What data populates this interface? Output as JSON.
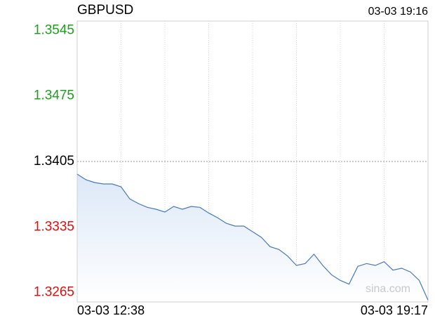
{
  "chart_data": {
    "type": "line",
    "title": "GBPUSD",
    "timestamp": "03-03 19:16",
    "watermark": "sina.com",
    "x_labels": [
      "03-03 12:38",
      "03-03 19:17"
    ],
    "series": [
      {
        "name": "GBPUSD",
        "color": "#4a78b8",
        "values": [
          1.33915,
          1.33855,
          1.33825,
          1.3381,
          1.3381,
          1.3378,
          1.3365,
          1.336,
          1.3356,
          1.3354,
          1.3351,
          1.3357,
          1.3354,
          1.3357,
          1.3356,
          1.335,
          1.3345,
          1.3339,
          1.3336,
          1.3336,
          1.333,
          1.3324,
          1.3314,
          1.3311,
          1.3304,
          1.3294,
          1.3296,
          1.3306,
          1.3294,
          1.3284,
          1.3278,
          1.3274,
          1.3293,
          1.3296,
          1.3294,
          1.3298,
          1.3289,
          1.3291,
          1.3287,
          1.3278,
          1.3257
        ]
      }
    ],
    "ylim": [
      1.3255,
      1.3555
    ],
    "yticks": [
      1.3545,
      1.3475,
      1.3405,
      1.3335,
      1.3265
    ],
    "baseline": 1.3405,
    "up_color": "#1ca01c",
    "down_color": "#e01010",
    "flat_color": "#000000",
    "vertical_grid": 8
  }
}
